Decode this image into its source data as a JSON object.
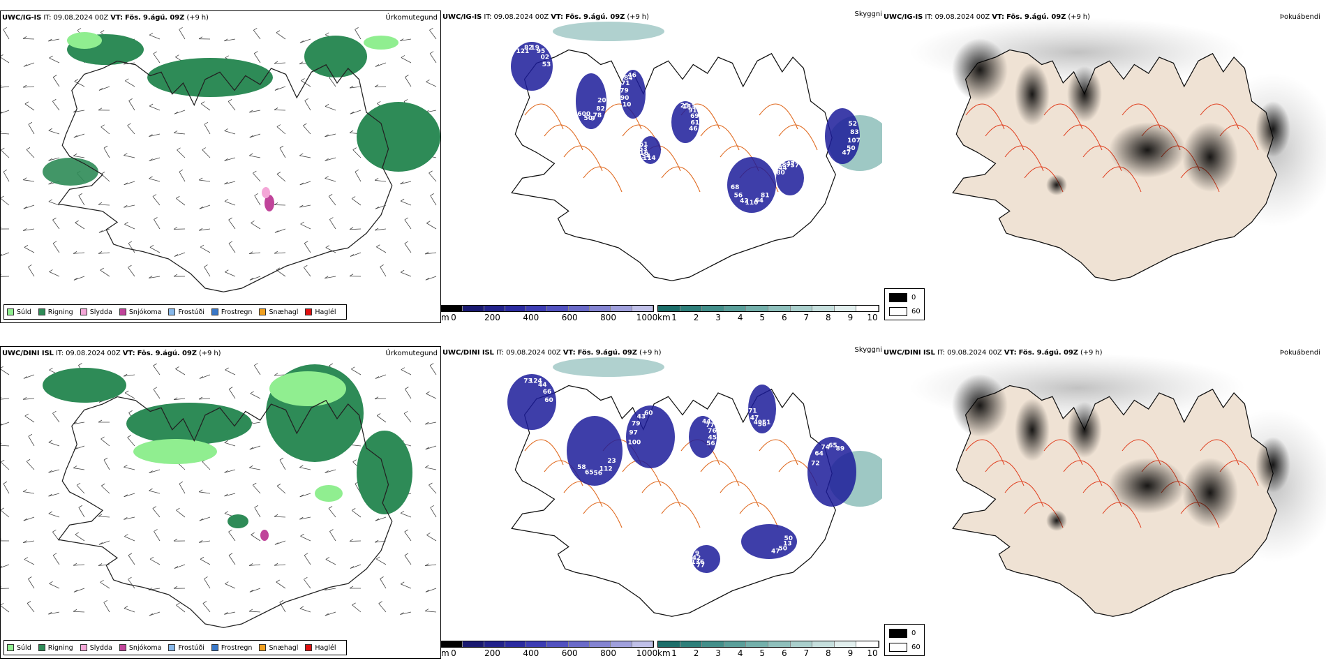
{
  "rows": [
    {
      "model": "UWC/IG-IS",
      "it_label": "IT:",
      "it_value": "09.08.2024 00Z",
      "vt_label": "VT:",
      "vt_value": "Fös. 9.ágú. 09Z",
      "offset": "(+9 h)",
      "precip_label": "Úrkomutegund",
      "vis_label": "Skyggni",
      "fog_label": "Þokuábendi",
      "cloud_numbers": [
        "53",
        "600",
        "46",
        "46",
        "68",
        "57",
        "47",
        "61",
        "02",
        "50",
        "84",
        "61",
        "56",
        "47",
        "50",
        "53",
        "95",
        "9",
        "71",
        "69",
        "42",
        "87",
        "107",
        "16",
        "19",
        "78",
        "79",
        "91",
        "110",
        "44",
        "83",
        "54",
        "82",
        "82",
        "90",
        "133",
        "64",
        "80",
        "52",
        "114",
        "121",
        "20",
        "10",
        "25",
        "81"
      ]
    },
    {
      "model": "UWC/DINI ISL",
      "it_label": "IT:",
      "it_value": "09.08.2024 00Z",
      "vt_label": "VT:",
      "vt_value": "Fös. 9.ágú. 09Z",
      "offset": "(+9 h)",
      "precip_label": "Úrkomutegund",
      "vis_label": "Skyggni",
      "fog_label": "Þokuábendi",
      "cloud_numbers": [
        "60",
        "58",
        "60",
        "56",
        "71",
        "89",
        "47",
        "9",
        "66",
        "65",
        "43",
        "45",
        "47",
        "65",
        "50",
        "42",
        "44",
        "56",
        "79",
        "76",
        "49",
        "74",
        "13",
        "136",
        "124",
        "112",
        "97",
        "77",
        "58",
        "64",
        "50",
        "77",
        "73",
        "23",
        "100",
        "44",
        "51",
        "72"
      ]
    }
  ],
  "precip_legend": [
    {
      "label": "Súld",
      "color": "#90ee90"
    },
    {
      "label": "Rigning",
      "color": "#2e8b57"
    },
    {
      "label": "Slydda",
      "color": "#f4a6d7"
    },
    {
      "label": "Snjókoma",
      "color": "#c0449a"
    },
    {
      "label": "Frostúði",
      "color": "#87b8ea"
    },
    {
      "label": "Frostregn",
      "color": "#3a78c8"
    },
    {
      "label": "Snæhagl",
      "color": "#f0a020"
    },
    {
      "label": "Haglél",
      "color": "#e01010"
    }
  ],
  "height_scale": {
    "unit": "m",
    "ticks": [
      "0",
      "200",
      "400",
      "600",
      "800",
      "1000"
    ],
    "colors": [
      "#000000",
      "#191970",
      "#22228b",
      "#2b2ba0",
      "#3d3db4",
      "#5252c0",
      "#6a6ac8",
      "#8484d2",
      "#a0a0dc",
      "#c0c0e8"
    ]
  },
  "vis_scale": {
    "unit": "km",
    "ticks": [
      "1",
      "2",
      "3",
      "4",
      "5",
      "6",
      "7",
      "8",
      "9",
      "10"
    ],
    "colors": [
      "#1c6e6a",
      "#2e7f7a",
      "#438f8a",
      "#5a9f9a",
      "#74b0ab",
      "#8fc0bc",
      "#aacfcc",
      "#c6dfdd",
      "#e2efee",
      "#ffffff"
    ]
  },
  "fog_key": [
    {
      "label": "0",
      "color": "#000000"
    },
    {
      "label": "60",
      "color": "#ffffff"
    }
  ],
  "colors": {
    "rain": "#2e8b57",
    "drizzle": "#90ee90",
    "cloud": "#1c1c9a",
    "vis": "#4f9a94",
    "road": "#e06a20",
    "land": "#efe2d4"
  }
}
